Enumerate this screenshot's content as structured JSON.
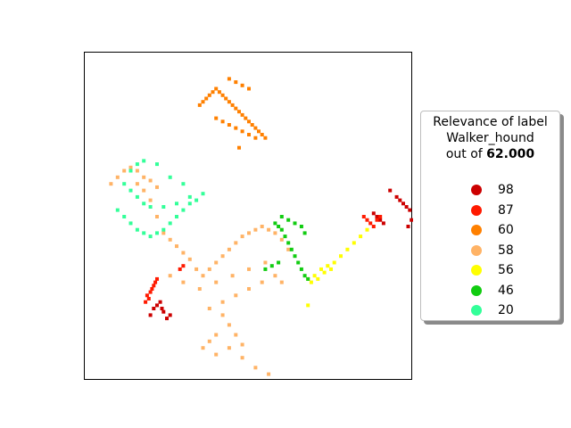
{
  "chart_data": {
    "type": "scatter",
    "title": "",
    "xlabel": "",
    "ylabel": "",
    "grid": false,
    "legend": {
      "placement": "right",
      "title_line1": "Relevance of label",
      "title_line2": "Walker_hound",
      "title_line3_prefix": "out of ",
      "title_line3_value": "62.000",
      "entries": [
        {
          "label": "98",
          "color": "#cc0000"
        },
        {
          "label": "87",
          "color": "#ff1a00"
        },
        {
          "label": "60",
          "color": "#ff8000"
        },
        {
          "label": "58",
          "color": "#ffb366"
        },
        {
          "label": "56",
          "color": "#ffff00"
        },
        {
          "label": "46",
          "color": "#11cc11"
        },
        {
          "label": "20",
          "color": "#33ff99"
        }
      ]
    },
    "series": [
      {
        "label": "98",
        "color": "#cc0000",
        "x": [
          0.93,
          0.95,
          0.96,
          0.97,
          0.98,
          0.99,
          0.88,
          0.89,
          0.9,
          0.91,
          0.985,
          0.995,
          0.2,
          0.21,
          0.22,
          0.23,
          0.235,
          0.24,
          0.25,
          0.26
        ],
        "y": [
          0.42,
          0.44,
          0.45,
          0.46,
          0.47,
          0.48,
          0.49,
          0.5,
          0.51,
          0.52,
          0.53,
          0.51,
          0.8,
          0.78,
          0.77,
          0.76,
          0.78,
          0.79,
          0.81,
          0.8
        ]
      },
      {
        "label": "87",
        "color": "#ff1a00",
        "x": [
          0.85,
          0.86,
          0.87,
          0.88,
          0.89,
          0.9,
          0.19,
          0.2,
          0.205,
          0.21,
          0.215,
          0.22,
          0.185,
          0.195,
          0.29,
          0.3
        ],
        "y": [
          0.5,
          0.51,
          0.52,
          0.53,
          0.51,
          0.5,
          0.74,
          0.73,
          0.72,
          0.71,
          0.7,
          0.69,
          0.76,
          0.75,
          0.66,
          0.65
        ]
      },
      {
        "label": "60",
        "color": "#ff8000",
        "x": [
          0.35,
          0.36,
          0.37,
          0.38,
          0.39,
          0.4,
          0.41,
          0.42,
          0.43,
          0.44,
          0.45,
          0.46,
          0.47,
          0.48,
          0.49,
          0.5,
          0.51,
          0.52,
          0.53,
          0.54,
          0.55,
          0.4,
          0.42,
          0.44,
          0.46,
          0.48,
          0.5,
          0.52,
          0.44,
          0.46,
          0.48,
          0.5,
          0.47
        ],
        "y": [
          0.16,
          0.15,
          0.14,
          0.13,
          0.12,
          0.11,
          0.12,
          0.13,
          0.14,
          0.15,
          0.16,
          0.17,
          0.18,
          0.19,
          0.2,
          0.21,
          0.22,
          0.23,
          0.24,
          0.25,
          0.26,
          0.2,
          0.21,
          0.22,
          0.23,
          0.24,
          0.25,
          0.26,
          0.08,
          0.09,
          0.1,
          0.11,
          0.29
        ]
      },
      {
        "label": "58",
        "color": "#ffb366",
        "x": [
          0.08,
          0.1,
          0.12,
          0.14,
          0.16,
          0.18,
          0.2,
          0.22,
          0.24,
          0.26,
          0.28,
          0.3,
          0.32,
          0.34,
          0.36,
          0.38,
          0.4,
          0.42,
          0.44,
          0.46,
          0.48,
          0.5,
          0.52,
          0.54,
          0.56,
          0.58,
          0.6,
          0.62,
          0.35,
          0.4,
          0.45,
          0.5,
          0.55,
          0.6,
          0.38,
          0.42,
          0.46,
          0.5,
          0.54,
          0.58,
          0.26,
          0.3,
          0.4,
          0.44,
          0.48,
          0.52,
          0.56,
          0.42,
          0.44,
          0.46,
          0.48,
          0.4,
          0.38,
          0.36,
          0.16,
          0.18,
          0.2,
          0.22
        ],
        "y": [
          0.4,
          0.38,
          0.36,
          0.35,
          0.4,
          0.42,
          0.45,
          0.5,
          0.55,
          0.57,
          0.59,
          0.61,
          0.63,
          0.66,
          0.68,
          0.66,
          0.64,
          0.62,
          0.6,
          0.58,
          0.56,
          0.55,
          0.54,
          0.53,
          0.54,
          0.55,
          0.57,
          0.6,
          0.72,
          0.7,
          0.68,
          0.66,
          0.64,
          0.7,
          0.78,
          0.76,
          0.74,
          0.72,
          0.7,
          0.68,
          0.68,
          0.7,
          0.86,
          0.9,
          0.93,
          0.96,
          0.98,
          0.8,
          0.83,
          0.86,
          0.89,
          0.92,
          0.88,
          0.9,
          0.36,
          0.38,
          0.39,
          0.41
        ]
      },
      {
        "label": "56",
        "color": "#ffff00",
        "x": [
          0.68,
          0.7,
          0.72,
          0.74,
          0.76,
          0.78,
          0.8,
          0.82,
          0.84,
          0.86,
          0.69,
          0.71,
          0.73,
          0.75,
          0.68
        ],
        "y": [
          0.69,
          0.68,
          0.66,
          0.65,
          0.64,
          0.62,
          0.6,
          0.58,
          0.56,
          0.54,
          0.7,
          0.69,
          0.67,
          0.66,
          0.77
        ]
      },
      {
        "label": "46",
        "color": "#11cc11",
        "x": [
          0.58,
          0.59,
          0.6,
          0.61,
          0.62,
          0.63,
          0.64,
          0.65,
          0.66,
          0.67,
          0.68,
          0.6,
          0.62,
          0.64,
          0.66,
          0.67,
          0.55,
          0.57,
          0.59
        ],
        "y": [
          0.52,
          0.53,
          0.54,
          0.56,
          0.58,
          0.6,
          0.62,
          0.64,
          0.66,
          0.68,
          0.69,
          0.5,
          0.51,
          0.52,
          0.53,
          0.55,
          0.66,
          0.65,
          0.64
        ]
      },
      {
        "label": "20",
        "color": "#33ff99",
        "x": [
          0.1,
          0.12,
          0.14,
          0.16,
          0.18,
          0.2,
          0.22,
          0.24,
          0.26,
          0.28,
          0.3,
          0.32,
          0.34,
          0.14,
          0.16,
          0.18,
          0.22,
          0.26,
          0.3,
          0.12,
          0.14,
          0.16,
          0.18,
          0.2,
          0.24,
          0.28,
          0.32,
          0.36
        ],
        "y": [
          0.48,
          0.5,
          0.52,
          0.54,
          0.55,
          0.56,
          0.55,
          0.54,
          0.52,
          0.5,
          0.48,
          0.46,
          0.45,
          0.36,
          0.34,
          0.33,
          0.34,
          0.38,
          0.4,
          0.4,
          0.42,
          0.44,
          0.46,
          0.47,
          0.47,
          0.46,
          0.44,
          0.43
        ]
      }
    ]
  }
}
